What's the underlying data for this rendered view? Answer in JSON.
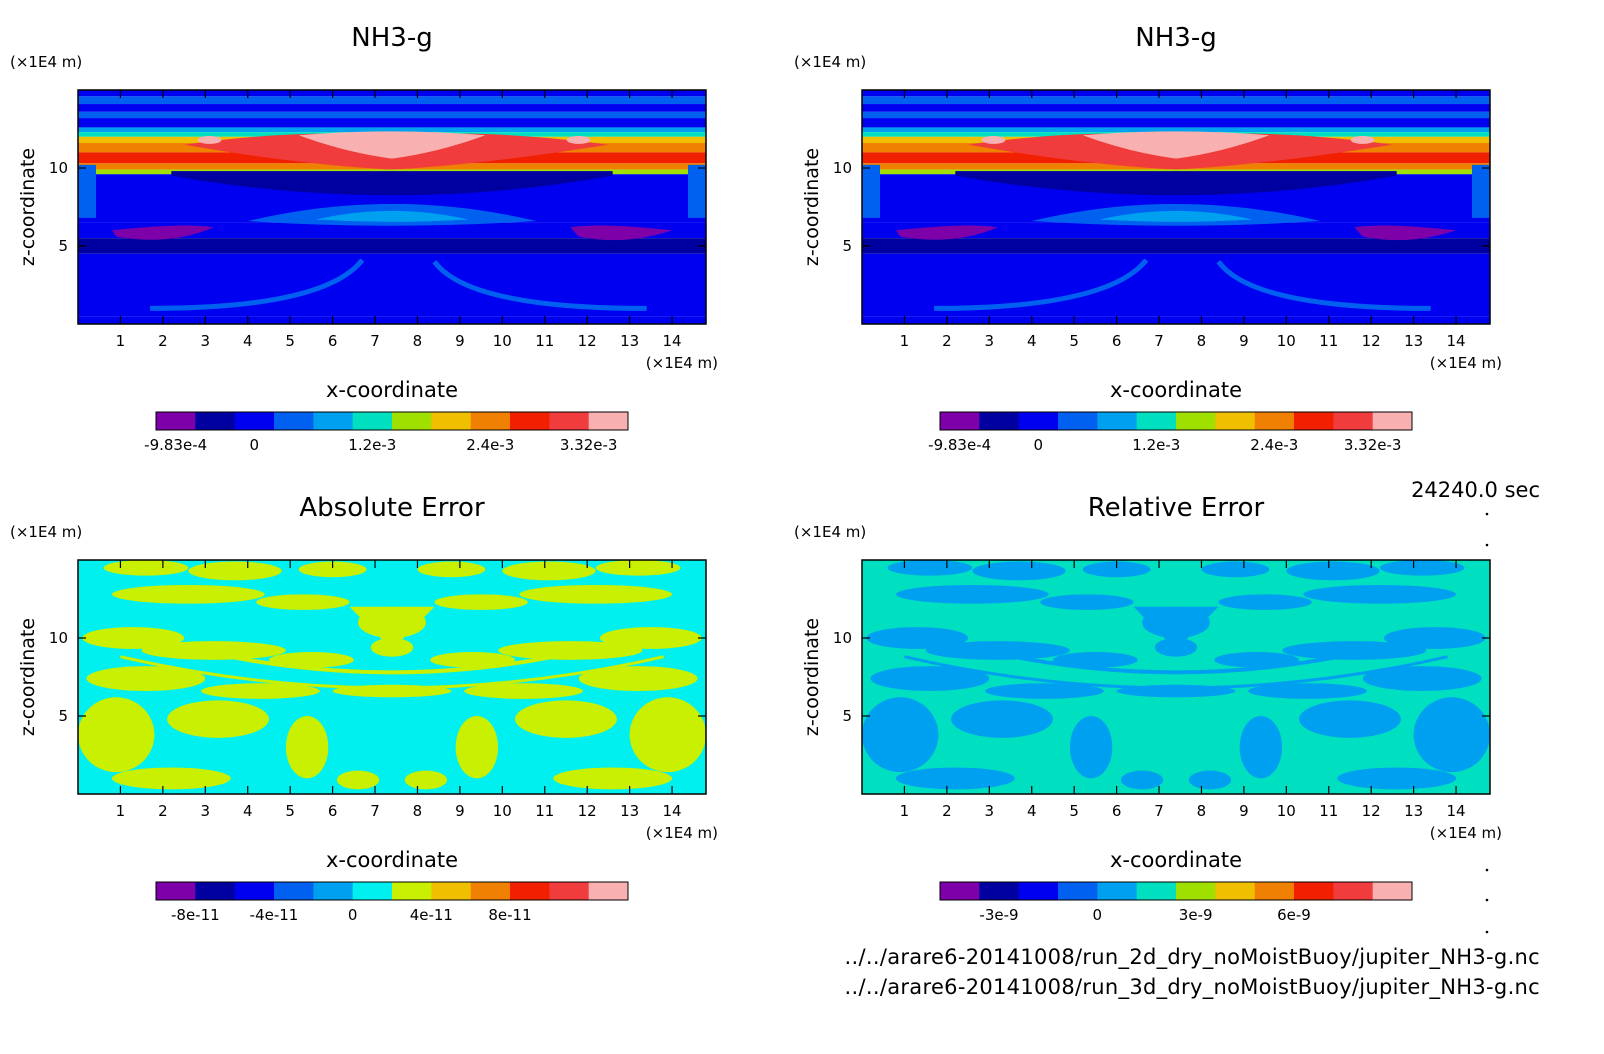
{
  "chart_data": [
    {
      "type": "heatmap",
      "title": "NH3-g",
      "xlabel": "x-coordinate",
      "ylabel": "z-coordinate",
      "x_unit": "(×1E4 m)",
      "y_unit": "(×1E4 m)",
      "xlim": [
        0,
        14.8
      ],
      "ylim": [
        0,
        15
      ],
      "x_ticks": [
        "1",
        "2",
        "3",
        "4",
        "5",
        "6",
        "7",
        "8",
        "9",
        "10",
        "11",
        "12",
        "13",
        "14"
      ],
      "y_ticks": [
        "5",
        "10"
      ],
      "field": "nh3",
      "colorbar": {
        "colors": [
          "#7d00a8",
          "#0000a0",
          "#0000f0",
          "#0060f0",
          "#00a0f0",
          "#00e0c0",
          "#a0e000",
          "#f0c000",
          "#f08000",
          "#f02000",
          "#f03c3c",
          "#f8b0b0"
        ],
        "labels": [
          "-9.83e-4",
          "0",
          "1.2e-3",
          "2.4e-3",
          "3.32e-3"
        ],
        "label_bins": [
          0.5,
          2.5,
          5.5,
          8.5,
          11
        ]
      },
      "layers": [
        {
          "z": 14.6,
          "level": 3
        },
        {
          "z": 14.1,
          "level": 2
        },
        {
          "z": 13.6,
          "level": 3
        },
        {
          "z": 13.2,
          "level": 2
        },
        {
          "z": 12.6,
          "level": 4
        },
        {
          "z": 12.3,
          "level": 5
        },
        {
          "z": 12.0,
          "level": 7
        },
        {
          "z": 11.6,
          "level": 8
        },
        {
          "z": 11.0,
          "level": 9
        },
        {
          "z": 10.3,
          "level": 8
        },
        {
          "z": 9.9,
          "level": 6
        },
        {
          "z": 9.6,
          "level": 2
        },
        {
          "z": 6.5,
          "level": 2
        },
        {
          "z": 5.5,
          "level": 1
        },
        {
          "z": 4.5,
          "level": 2
        },
        {
          "z": 0.5,
          "level": 2
        },
        {
          "z": 0,
          "level": 3
        }
      ]
    },
    {
      "type": "heatmap",
      "title": "NH3-g",
      "xlabel": "x-coordinate",
      "ylabel": "z-coordinate",
      "x_unit": "(×1E4 m)",
      "y_unit": "(×1E4 m)",
      "xlim": [
        0,
        14.8
      ],
      "ylim": [
        0,
        15
      ],
      "x_ticks": [
        "1",
        "2",
        "3",
        "4",
        "5",
        "6",
        "7",
        "8",
        "9",
        "10",
        "11",
        "12",
        "13",
        "14"
      ],
      "y_ticks": [
        "5",
        "10"
      ],
      "field": "nh3",
      "colorbar": {
        "colors": [
          "#7d00a8",
          "#0000a0",
          "#0000f0",
          "#0060f0",
          "#00a0f0",
          "#00e0c0",
          "#a0e000",
          "#f0c000",
          "#f08000",
          "#f02000",
          "#f03c3c",
          "#f8b0b0"
        ],
        "labels": [
          "-9.83e-4",
          "0",
          "1.2e-3",
          "2.4e-3",
          "3.32e-3"
        ],
        "label_bins": [
          0.5,
          2.5,
          5.5,
          8.5,
          11
        ]
      },
      "layers": [
        {
          "z": 14.6,
          "level": 3
        },
        {
          "z": 14.1,
          "level": 2
        },
        {
          "z": 13.6,
          "level": 3
        },
        {
          "z": 13.2,
          "level": 2
        },
        {
          "z": 12.6,
          "level": 4
        },
        {
          "z": 12.3,
          "level": 5
        },
        {
          "z": 12.0,
          "level": 7
        },
        {
          "z": 11.6,
          "level": 8
        },
        {
          "z": 11.0,
          "level": 9
        },
        {
          "z": 10.3,
          "level": 8
        },
        {
          "z": 9.9,
          "level": 6
        },
        {
          "z": 9.6,
          "level": 2
        },
        {
          "z": 6.5,
          "level": 2
        },
        {
          "z": 5.5,
          "level": 1
        },
        {
          "z": 4.5,
          "level": 2
        },
        {
          "z": 0.5,
          "level": 2
        },
        {
          "z": 0,
          "level": 3
        }
      ]
    },
    {
      "type": "heatmap",
      "title": "Absolute Error",
      "xlabel": "x-coordinate",
      "ylabel": "z-coordinate",
      "x_unit": "(×1E4 m)",
      "y_unit": "(×1E4 m)",
      "xlim": [
        0,
        14.8
      ],
      "ylim": [
        0,
        15
      ],
      "x_ticks": [
        "1",
        "2",
        "3",
        "4",
        "5",
        "6",
        "7",
        "8",
        "9",
        "10",
        "11",
        "12",
        "13",
        "14"
      ],
      "y_ticks": [
        "5",
        "10"
      ],
      "field": "abs",
      "base_color": "#00f0f0",
      "blob_color": "#c8f000",
      "colorbar": {
        "colors": [
          "#7d00a8",
          "#0000a0",
          "#0000f0",
          "#0060f0",
          "#00a0f0",
          "#00f0f0",
          "#c8f000",
          "#f0c000",
          "#f08000",
          "#f02000",
          "#f03c3c",
          "#f8b0b0"
        ],
        "labels": [
          "-8e-11",
          "-4e-11",
          "0",
          "4e-11",
          "8e-11"
        ],
        "label_bins": [
          1,
          3,
          5,
          7,
          9
        ]
      }
    },
    {
      "type": "heatmap",
      "title": "Relative Error",
      "xlabel": "x-coordinate",
      "ylabel": "z-coordinate",
      "x_unit": "(×1E4 m)",
      "y_unit": "(×1E4 m)",
      "xlim": [
        0,
        14.8
      ],
      "ylim": [
        0,
        15
      ],
      "x_ticks": [
        "1",
        "2",
        "3",
        "4",
        "5",
        "6",
        "7",
        "8",
        "9",
        "10",
        "11",
        "12",
        "13",
        "14"
      ],
      "y_ticks": [
        "5",
        "10"
      ],
      "field": "rel",
      "base_color": "#00e0c0",
      "blob_color": "#00a0f0",
      "colorbar": {
        "colors": [
          "#7d00a8",
          "#0000a0",
          "#0000f0",
          "#0060f0",
          "#00a0f0",
          "#00e0c0",
          "#a0e000",
          "#f0c000",
          "#f08000",
          "#f02000",
          "#f03c3c",
          "#f8b0b0"
        ],
        "labels": [
          "-3e-9",
          "0",
          "3e-9",
          "6e-9"
        ],
        "label_bins": [
          1.5,
          4,
          6.5,
          9
        ]
      }
    }
  ],
  "timestamp": "24240.0 sec",
  "file_lines": [
    "../../arare6-20141008/run_2d_dry_noMoistBuoy/jupiter_NH3-g.nc",
    "../../arare6-20141008/run_3d_dry_noMoistBuoy/jupiter_NH3-g.nc"
  ]
}
